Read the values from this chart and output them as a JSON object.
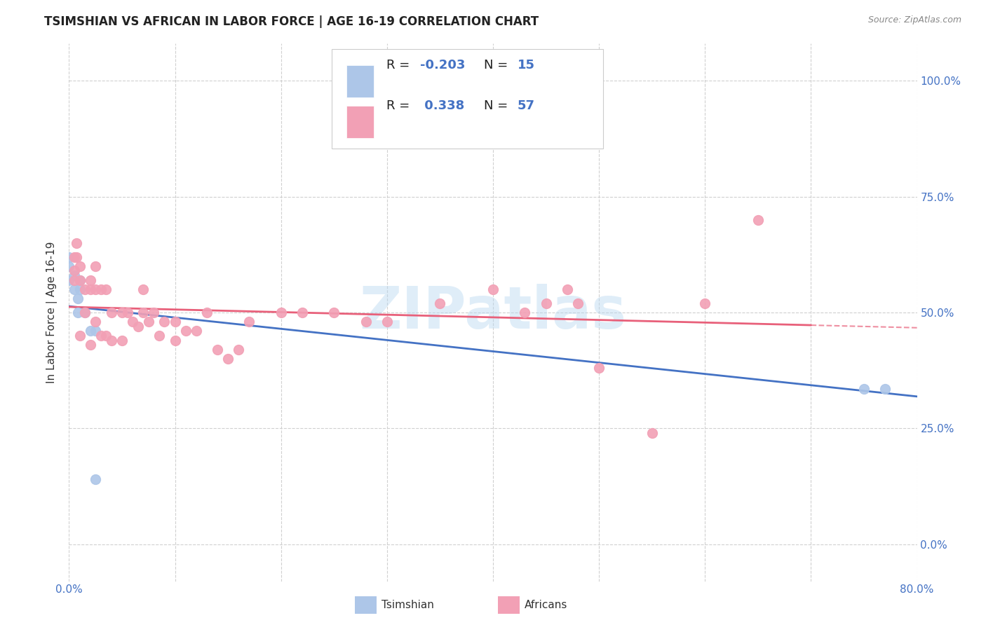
{
  "title": "TSIMSHIAN VS AFRICAN IN LABOR FORCE | AGE 16-19 CORRELATION CHART",
  "source": "Source: ZipAtlas.com",
  "ylabel": "In Labor Force | Age 16-19",
  "xlim": [
    0.0,
    0.8
  ],
  "ylim": [
    -0.08,
    1.08
  ],
  "tsimshian_R": -0.203,
  "tsimshian_N": 15,
  "africans_R": 0.338,
  "africans_N": 57,
  "tsimshian_color": "#adc6e8",
  "africans_color": "#f2a0b5",
  "trend_tsimshian_color": "#4472c4",
  "trend_africans_color": "#e8607a",
  "watermark_text": "ZIPatlas",
  "tsimshian_x": [
    0.0,
    0.0,
    0.0,
    0.005,
    0.005,
    0.008,
    0.008,
    0.01,
    0.01,
    0.015,
    0.02,
    0.025,
    0.025,
    0.75,
    0.77
  ],
  "tsimshian_y": [
    0.62,
    0.6,
    0.57,
    0.58,
    0.55,
    0.53,
    0.5,
    0.57,
    0.55,
    0.5,
    0.46,
    0.46,
    0.14,
    0.335,
    0.335
  ],
  "africans_x": [
    0.005,
    0.005,
    0.005,
    0.007,
    0.007,
    0.01,
    0.01,
    0.01,
    0.015,
    0.015,
    0.02,
    0.02,
    0.02,
    0.025,
    0.025,
    0.025,
    0.03,
    0.03,
    0.035,
    0.035,
    0.04,
    0.04,
    0.05,
    0.05,
    0.055,
    0.06,
    0.065,
    0.07,
    0.07,
    0.075,
    0.08,
    0.085,
    0.09,
    0.1,
    0.1,
    0.11,
    0.12,
    0.13,
    0.14,
    0.15,
    0.16,
    0.17,
    0.2,
    0.22,
    0.25,
    0.28,
    0.3,
    0.35,
    0.4,
    0.43,
    0.45,
    0.47,
    0.48,
    0.5,
    0.55,
    0.6,
    0.65
  ],
  "africans_y": [
    0.62,
    0.59,
    0.57,
    0.65,
    0.62,
    0.6,
    0.57,
    0.45,
    0.55,
    0.5,
    0.57,
    0.55,
    0.43,
    0.6,
    0.55,
    0.48,
    0.55,
    0.45,
    0.55,
    0.45,
    0.5,
    0.44,
    0.5,
    0.44,
    0.5,
    0.48,
    0.47,
    0.55,
    0.5,
    0.48,
    0.5,
    0.45,
    0.48,
    0.48,
    0.44,
    0.46,
    0.46,
    0.5,
    0.42,
    0.4,
    0.42,
    0.48,
    0.5,
    0.5,
    0.5,
    0.48,
    0.48,
    0.52,
    0.55,
    0.5,
    0.52,
    0.55,
    0.52,
    0.38,
    0.24,
    0.52,
    0.7
  ],
  "background_color": "#ffffff",
  "grid_color": "#d0d0d0",
  "title_fontsize": 12,
  "ytick_positions": [
    0.0,
    0.25,
    0.5,
    0.75,
    1.0
  ],
  "ytick_labels": [
    "0.0%",
    "25.0%",
    "50.0%",
    "75.0%",
    "100.0%"
  ],
  "xtick_positions": [
    0.0,
    0.1,
    0.2,
    0.3,
    0.4,
    0.5,
    0.6,
    0.7,
    0.8
  ],
  "axis_tick_color": "#4472c4",
  "legend_text_color": "#4472c4"
}
